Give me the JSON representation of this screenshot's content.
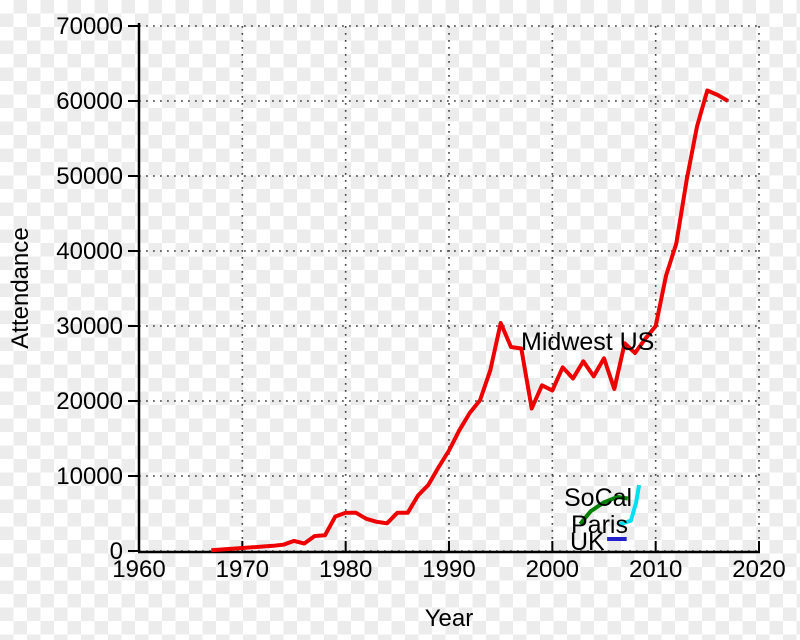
{
  "chart_data": {
    "type": "line",
    "title": "",
    "xlabel": "Year",
    "ylabel": "Attendance",
    "xlim": [
      1960,
      2020
    ],
    "ylim": [
      0,
      70000
    ],
    "x_tick_interval": 10,
    "y_tick_interval": 10000,
    "x_tick_labels": [
      "1960",
      "1970",
      "1980",
      "1990",
      "2000",
      "2010",
      "2020"
    ],
    "y_tick_labels": [
      "0",
      "10000",
      "20000",
      "30000",
      "40000",
      "50000",
      "60000",
      "70000"
    ],
    "grid": "dotted",
    "grid_color": "#444444",
    "axis_color": "#000000",
    "legend_position": "inline-annotations",
    "series": [
      {
        "name": "Midwest US",
        "color": "#ee0000",
        "points": [
          [
            1967,
            100
          ],
          [
            1968,
            200
          ],
          [
            1969,
            300
          ],
          [
            1970,
            400
          ],
          [
            1971,
            500
          ],
          [
            1972,
            600
          ],
          [
            1973,
            700
          ],
          [
            1974,
            850
          ],
          [
            1975,
            1350
          ],
          [
            1976,
            1000
          ],
          [
            1977,
            2000
          ],
          [
            1978,
            2100
          ],
          [
            1979,
            4600
          ],
          [
            1980,
            5100
          ],
          [
            1981,
            5100
          ],
          [
            1982,
            4300
          ],
          [
            1983,
            3900
          ],
          [
            1984,
            3700
          ],
          [
            1985,
            5100
          ],
          [
            1986,
            5100
          ],
          [
            1987,
            7400
          ],
          [
            1988,
            8800
          ],
          [
            1989,
            11200
          ],
          [
            1990,
            13400
          ],
          [
            1991,
            16100
          ],
          [
            1992,
            18400
          ],
          [
            1993,
            20100
          ],
          [
            1994,
            24100
          ],
          [
            1995,
            30400
          ],
          [
            1996,
            27200
          ],
          [
            1997,
            27000
          ],
          [
            1998,
            19000
          ],
          [
            1999,
            22100
          ],
          [
            2000,
            21400
          ],
          [
            2001,
            24500
          ],
          [
            2002,
            23000
          ],
          [
            2003,
            25300
          ],
          [
            2004,
            23300
          ],
          [
            2005,
            25700
          ],
          [
            2006,
            21600
          ],
          [
            2007,
            27700
          ],
          [
            2008,
            26400
          ],
          [
            2009,
            28300
          ],
          [
            2010,
            30000
          ],
          [
            2011,
            36700
          ],
          [
            2012,
            41000
          ],
          [
            2013,
            49500
          ],
          [
            2014,
            56600
          ],
          [
            2015,
            61400
          ],
          [
            2016,
            60800
          ],
          [
            2017,
            60000
          ]
        ]
      },
      {
        "name": "SoCal",
        "color": "#008000",
        "points": [
          [
            2002.7,
            3600
          ],
          [
            2003.7,
            5300
          ],
          [
            2005.0,
            6500
          ],
          [
            2006.3,
            7200
          ],
          [
            2007.3,
            7000
          ]
        ]
      },
      {
        "name": "Paris",
        "color": "#00dff0",
        "points": [
          [
            2006.4,
            3500
          ],
          [
            2007.6,
            4050
          ],
          [
            2008.1,
            6400
          ],
          [
            2008.4,
            8800
          ]
        ]
      },
      {
        "name": "UK",
        "color": "#2222cc",
        "points": [
          [
            2005.3,
            1600
          ],
          [
            2007.2,
            1600
          ]
        ]
      }
    ]
  }
}
